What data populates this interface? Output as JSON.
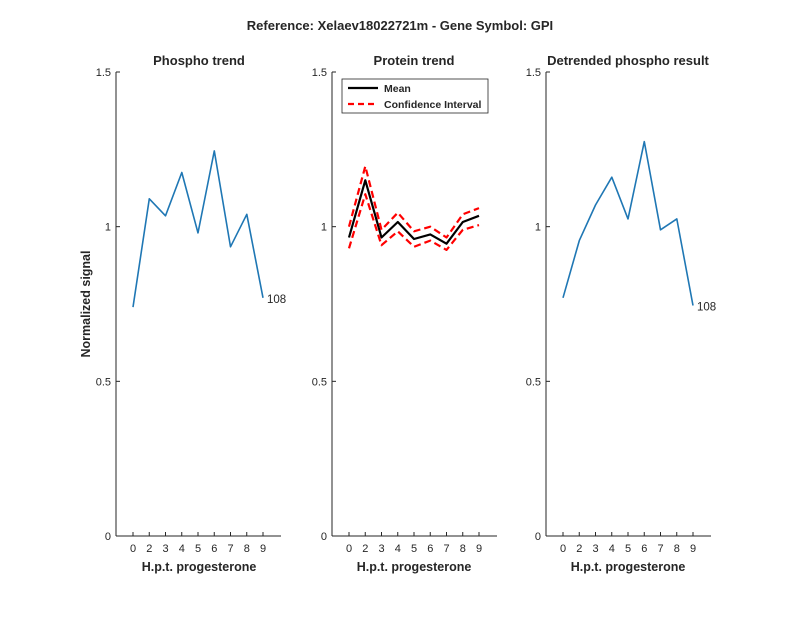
{
  "figure_title": "Reference:  Xelaev18022721m - Gene Symbol:  GPI",
  "chart_data": [
    {
      "type": "line",
      "title": "Phospho trend",
      "xlabel": "H.p.t. progesterone",
      "ylabel": "Normalized signal",
      "x": [
        0,
        2,
        3,
        4,
        5,
        6,
        7,
        8,
        9
      ],
      "xticklabels": [
        "0",
        "2",
        "3",
        "4",
        "5",
        "6",
        "7",
        "8",
        "9"
      ],
      "ylim": [
        0,
        1.5
      ],
      "yticks": [
        0,
        0.5,
        1,
        1.5
      ],
      "yticklabels": [
        "0",
        "0.5",
        "1",
        "1.5"
      ],
      "series": [
        {
          "name": "Phospho",
          "color": "#1f77b4",
          "style": "solid",
          "values": [
            0.74,
            1.09,
            1.035,
            1.175,
            0.98,
            1.245,
            0.935,
            1.04,
            0.77
          ]
        }
      ],
      "annotation": {
        "text": "108",
        "series": 0,
        "at_index": 8
      }
    },
    {
      "type": "line",
      "title": "Protein trend",
      "xlabel": "H.p.t. progesterone",
      "ylabel": "",
      "x": [
        0,
        2,
        3,
        4,
        5,
        6,
        7,
        8,
        9
      ],
      "xticklabels": [
        "0",
        "2",
        "3",
        "4",
        "5",
        "6",
        "7",
        "8",
        "9"
      ],
      "ylim": [
        0,
        1.5
      ],
      "yticks": [
        0,
        0.5,
        1,
        1.5
      ],
      "yticklabels": [
        "0",
        "0.5",
        "1",
        "1.5"
      ],
      "series": [
        {
          "name": "Mean",
          "color": "#000000",
          "style": "solid",
          "values": [
            0.965,
            1.15,
            0.965,
            1.015,
            0.96,
            0.975,
            0.945,
            1.015,
            1.035
          ]
        },
        {
          "name": "Confidence Interval",
          "color": "#ff0000",
          "style": "dashed",
          "values": [
            1.0,
            1.195,
            0.99,
            1.045,
            0.985,
            1.0,
            0.965,
            1.04,
            1.06
          ]
        },
        {
          "name": "",
          "color": "#ff0000",
          "style": "dashed",
          "values": [
            0.93,
            1.105,
            0.94,
            0.985,
            0.935,
            0.955,
            0.925,
            0.99,
            1.005
          ]
        }
      ],
      "legend": {
        "position": "top-left",
        "entries": [
          "Mean",
          "Confidence Interval"
        ]
      }
    },
    {
      "type": "line",
      "title": "Detrended phospho result",
      "xlabel": "H.p.t. progesterone",
      "ylabel": "",
      "x": [
        0,
        2,
        3,
        4,
        5,
        6,
        7,
        8,
        9
      ],
      "xticklabels": [
        "0",
        "2",
        "3",
        "4",
        "5",
        "6",
        "7",
        "8",
        "9"
      ],
      "ylim": [
        0,
        1.5
      ],
      "yticks": [
        0,
        0.5,
        1,
        1.5
      ],
      "yticklabels": [
        "0",
        "0.5",
        "1",
        "1.5"
      ],
      "series": [
        {
          "name": "Detrended",
          "color": "#1f77b4",
          "style": "solid",
          "values": [
            0.77,
            0.955,
            1.07,
            1.16,
            1.025,
            1.275,
            0.99,
            1.025,
            0.745
          ]
        }
      ],
      "annotation": {
        "text": "108",
        "series": 0,
        "at_index": 8
      }
    }
  ]
}
